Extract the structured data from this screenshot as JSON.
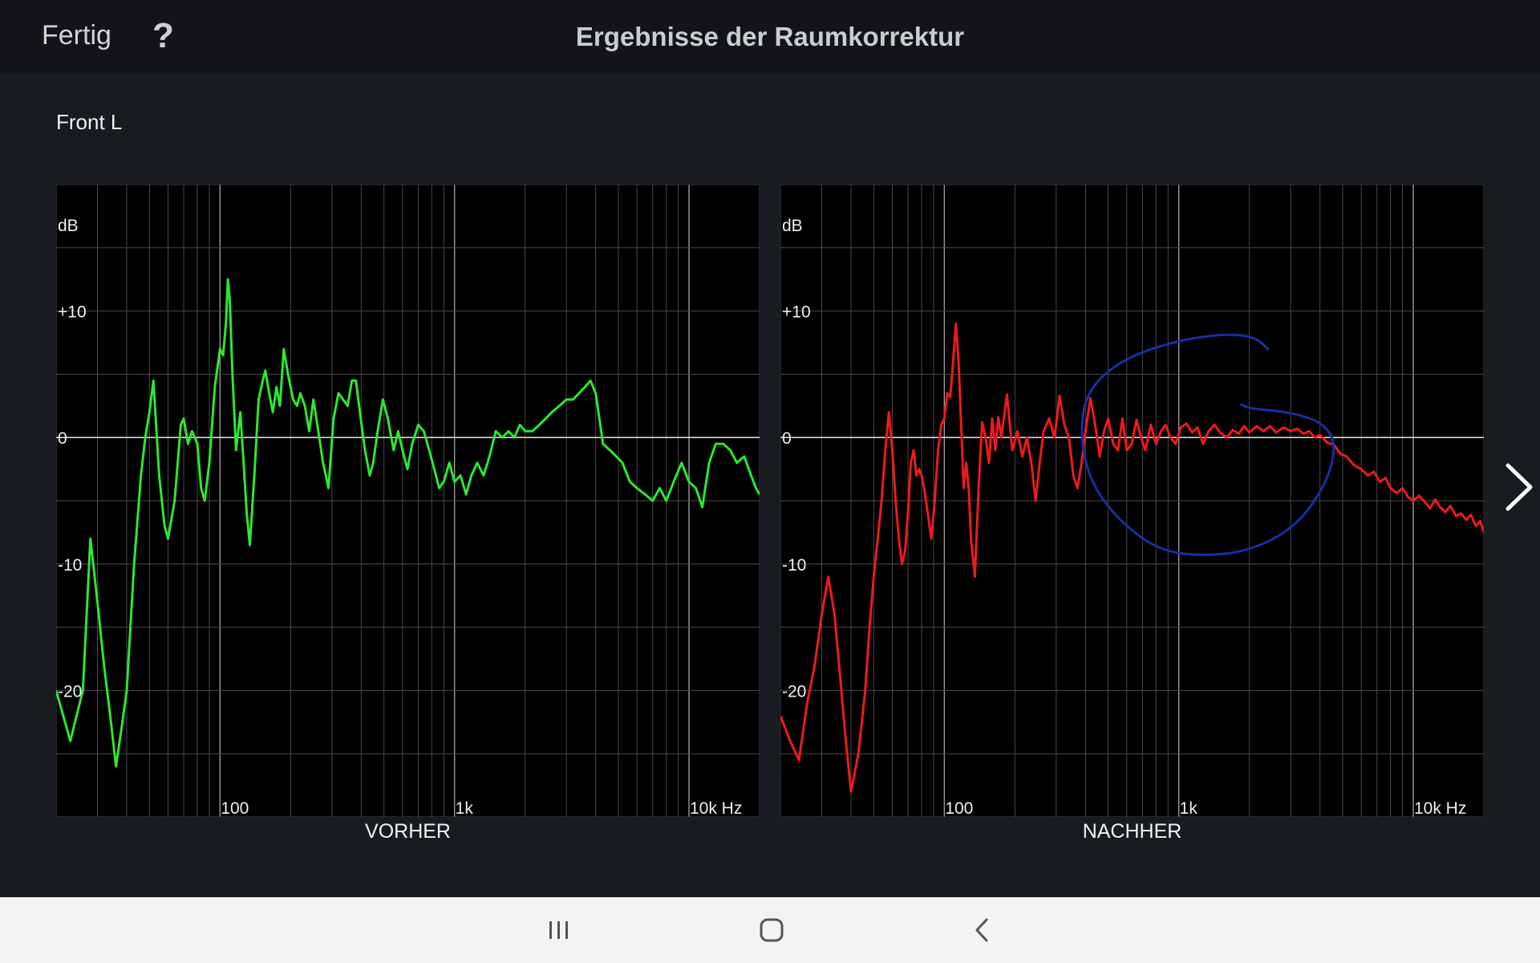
{
  "header": {
    "done_label": "Fertig",
    "help_label": "?",
    "title": "Ergebnisse der Raumkorrektur"
  },
  "channel_label": "Front L",
  "icons": {
    "help": "question-mark-icon",
    "next": "chevron-right-icon",
    "nav_recent": "recent-apps-icon",
    "nav_home": "home-icon",
    "nav_back": "back-icon"
  },
  "colors": {
    "before_curve": "#2fe62f",
    "after_curve": "#ee1a1a",
    "annotation": "#1a2fa0"
  },
  "chart_data": [
    {
      "type": "line",
      "caption": "VORHER",
      "ylabel": "dB",
      "y_ticks": [
        "+10",
        "0",
        "-10",
        "-20"
      ],
      "x_ticks": [
        "100",
        "1k",
        "10k Hz"
      ],
      "xlim": [
        20,
        20000
      ],
      "ylim": [
        -30,
        20
      ],
      "x_scale": "log",
      "grid": true,
      "series": [
        {
          "color": "#2fe62f",
          "points": [
            [
              20,
              -20
            ],
            [
              23,
              -24
            ],
            [
              26,
              -20
            ],
            [
              28,
              -8
            ],
            [
              30,
              -13
            ],
            [
              32,
              -18
            ],
            [
              34,
              -22
            ],
            [
              36,
              -26
            ],
            [
              38,
              -23
            ],
            [
              40,
              -20
            ],
            [
              43,
              -10
            ],
            [
              46,
              -3
            ],
            [
              48,
              0
            ],
            [
              50,
              2
            ],
            [
              52,
              4.5
            ],
            [
              55,
              -3
            ],
            [
              58,
              -7
            ],
            [
              60,
              -8
            ],
            [
              64,
              -5
            ],
            [
              68,
              1
            ],
            [
              70,
              1.5
            ],
            [
              73,
              -0.5
            ],
            [
              76,
              0.5
            ],
            [
              80,
              -0.5
            ],
            [
              83,
              -4
            ],
            [
              86,
              -5
            ],
            [
              90,
              -2
            ],
            [
              95,
              4
            ],
            [
              100,
              7
            ],
            [
              103,
              6.5
            ],
            [
              106,
              9
            ],
            [
              108,
              12.5
            ],
            [
              110,
              11
            ],
            [
              113,
              5
            ],
            [
              117,
              -1
            ],
            [
              122,
              2
            ],
            [
              126,
              -2
            ],
            [
              130,
              -6
            ],
            [
              134,
              -8.5
            ],
            [
              140,
              -3
            ],
            [
              146,
              3
            ],
            [
              152,
              4.5
            ],
            [
              156,
              5.3
            ],
            [
              162,
              3.5
            ],
            [
              168,
              2
            ],
            [
              174,
              4
            ],
            [
              180,
              2.5
            ],
            [
              187,
              7
            ],
            [
              195,
              5
            ],
            [
              205,
              3
            ],
            [
              213,
              2.5
            ],
            [
              220,
              3.5
            ],
            [
              230,
              2.5
            ],
            [
              240,
              0.5
            ],
            [
              250,
              3
            ],
            [
              260,
              1
            ],
            [
              275,
              -2
            ],
            [
              290,
              -4
            ],
            [
              305,
              1.5
            ],
            [
              320,
              3.5
            ],
            [
              335,
              3
            ],
            [
              350,
              2.5
            ],
            [
              365,
              4.5
            ],
            [
              380,
              4.5
            ],
            [
              395,
              2
            ],
            [
              415,
              -1
            ],
            [
              435,
              -3
            ],
            [
              450,
              -2
            ],
            [
              470,
              0.5
            ],
            [
              495,
              3
            ],
            [
              520,
              1.5
            ],
            [
              550,
              -1
            ],
            [
              575,
              0.5
            ],
            [
              600,
              -1
            ],
            [
              630,
              -2.5
            ],
            [
              660,
              -0.5
            ],
            [
              700,
              1
            ],
            [
              740,
              0.5
            ],
            [
              780,
              -1
            ],
            [
              820,
              -2.5
            ],
            [
              860,
              -4
            ],
            [
              900,
              -3.5
            ],
            [
              950,
              -2
            ],
            [
              1000,
              -3.5
            ],
            [
              1060,
              -3
            ],
            [
              1120,
              -4.5
            ],
            [
              1180,
              -3
            ],
            [
              1250,
              -2
            ],
            [
              1330,
              -3
            ],
            [
              1410,
              -1.5
            ],
            [
              1500,
              0.5
            ],
            [
              1600,
              0
            ],
            [
              1700,
              0.5
            ],
            [
              1800,
              0
            ],
            [
              1900,
              1
            ],
            [
              2000,
              0.5
            ],
            [
              2150,
              0.5
            ],
            [
              2300,
              1
            ],
            [
              2450,
              1.5
            ],
            [
              2600,
              2
            ],
            [
              2800,
              2.5
            ],
            [
              3000,
              3
            ],
            [
              3200,
              3
            ],
            [
              3400,
              3.5
            ],
            [
              3600,
              4
            ],
            [
              3800,
              4.5
            ],
            [
              4000,
              3.5
            ],
            [
              4300,
              -0.5
            ],
            [
              4600,
              -1
            ],
            [
              4900,
              -1.5
            ],
            [
              5200,
              -2
            ],
            [
              5600,
              -3.5
            ],
            [
              6000,
              -4
            ],
            [
              6500,
              -4.5
            ],
            [
              7000,
              -5
            ],
            [
              7500,
              -4
            ],
            [
              8000,
              -5
            ],
            [
              8600,
              -3.5
            ],
            [
              9300,
              -2
            ],
            [
              10000,
              -3.5
            ],
            [
              10700,
              -4
            ],
            [
              11400,
              -5.5
            ],
            [
              12200,
              -2
            ],
            [
              13000,
              -0.5
            ],
            [
              14000,
              -0.5
            ],
            [
              15000,
              -1
            ],
            [
              16000,
              -2
            ],
            [
              17200,
              -1.5
            ],
            [
              18400,
              -3
            ],
            [
              19300,
              -4
            ],
            [
              20000,
              -4.5
            ]
          ]
        }
      ]
    },
    {
      "type": "line",
      "caption": "NACHHER",
      "ylabel": "dB",
      "y_ticks": [
        "+10",
        "0",
        "-10",
        "-20"
      ],
      "x_ticks": [
        "100",
        "1k",
        "10k Hz"
      ],
      "xlim": [
        20,
        20000
      ],
      "ylim": [
        -30,
        20
      ],
      "x_scale": "log",
      "grid": true,
      "series": [
        {
          "color": "#ee1a1a",
          "points": [
            [
              20,
              -22
            ],
            [
              22,
              -24
            ],
            [
              24,
              -25.5
            ],
            [
              26,
              -21
            ],
            [
              28,
              -18
            ],
            [
              30,
              -14
            ],
            [
              32,
              -11
            ],
            [
              34,
              -14
            ],
            [
              36,
              -19
            ],
            [
              38,
              -24
            ],
            [
              40,
              -28
            ],
            [
              43,
              -25
            ],
            [
              46,
              -20
            ],
            [
              48,
              -15
            ],
            [
              50,
              -11
            ],
            [
              52,
              -8
            ],
            [
              54,
              -5
            ],
            [
              56,
              -1
            ],
            [
              58,
              2
            ],
            [
              60,
              -1
            ],
            [
              62,
              -5
            ],
            [
              64,
              -8
            ],
            [
              66,
              -10
            ],
            [
              68,
              -9
            ],
            [
              70,
              -6
            ],
            [
              72,
              -2
            ],
            [
              74,
              -1
            ],
            [
              76,
              -3
            ],
            [
              78,
              -2.5
            ],
            [
              80,
              -3
            ],
            [
              82,
              -4
            ],
            [
              85,
              -6
            ],
            [
              88,
              -8
            ],
            [
              91,
              -5
            ],
            [
              94,
              -1
            ],
            [
              97,
              1
            ],
            [
              100,
              1.5
            ],
            [
              103,
              3.5
            ],
            [
              106,
              3.2
            ],
            [
              109,
              6
            ],
            [
              112,
              9
            ],
            [
              115,
              6
            ],
            [
              118,
              1
            ],
            [
              121,
              -4
            ],
            [
              124,
              -2
            ],
            [
              127,
              -4
            ],
            [
              130,
              -8
            ],
            [
              135,
              -11
            ],
            [
              140,
              -4
            ],
            [
              145,
              1.2
            ],
            [
              150,
              0
            ],
            [
              155,
              -2
            ],
            [
              160,
              1.5
            ],
            [
              165,
              -1
            ],
            [
              170,
              1.6
            ],
            [
              175,
              0
            ],
            [
              185,
              3.4
            ],
            [
              195,
              -1
            ],
            [
              205,
              0.5
            ],
            [
              215,
              -1.5
            ],
            [
              225,
              0
            ],
            [
              235,
              -2
            ],
            [
              245,
              -5
            ],
            [
              255,
              -2
            ],
            [
              265,
              0.5
            ],
            [
              280,
              1.5
            ],
            [
              295,
              0
            ],
            [
              310,
              3.3
            ],
            [
              325,
              1
            ],
            [
              340,
              0
            ],
            [
              355,
              -3
            ],
            [
              370,
              -4
            ],
            [
              385,
              -2
            ],
            [
              400,
              0.5
            ],
            [
              420,
              3.1
            ],
            [
              440,
              1
            ],
            [
              460,
              -1.5
            ],
            [
              480,
              0.5
            ],
            [
              500,
              1.5
            ],
            [
              525,
              -0.5
            ],
            [
              550,
              -1
            ],
            [
              575,
              1.5
            ],
            [
              600,
              -1
            ],
            [
              630,
              -0.5
            ],
            [
              660,
              1.4
            ],
            [
              690,
              0
            ],
            [
              720,
              -1
            ],
            [
              760,
              1
            ],
            [
              800,
              -0.5
            ],
            [
              840,
              0.5
            ],
            [
              880,
              1
            ],
            [
              920,
              0
            ],
            [
              970,
              -0.5
            ],
            [
              1020,
              0.8
            ],
            [
              1080,
              1.1
            ],
            [
              1140,
              0.4
            ],
            [
              1200,
              0.8
            ],
            [
              1270,
              -0.5
            ],
            [
              1340,
              0.5
            ],
            [
              1420,
              1
            ],
            [
              1500,
              0.4
            ],
            [
              1600,
              0
            ],
            [
              1700,
              0.6
            ],
            [
              1800,
              0.3
            ],
            [
              1900,
              0.9
            ],
            [
              2000,
              0.4
            ],
            [
              2150,
              0.9
            ],
            [
              2300,
              0.5
            ],
            [
              2450,
              0.9
            ],
            [
              2600,
              0.4
            ],
            [
              2800,
              0.8
            ],
            [
              3000,
              0.5
            ],
            [
              3200,
              0.7
            ],
            [
              3400,
              0.3
            ],
            [
              3600,
              0.5
            ],
            [
              3800,
              0
            ],
            [
              4000,
              0.2
            ],
            [
              4300,
              -0.4
            ],
            [
              4600,
              -0.6
            ],
            [
              4900,
              -1.3
            ],
            [
              5200,
              -1.5
            ],
            [
              5600,
              -2.2
            ],
            [
              6000,
              -2.5
            ],
            [
              6400,
              -3
            ],
            [
              6800,
              -2.7
            ],
            [
              7200,
              -3.5
            ],
            [
              7600,
              -3.2
            ],
            [
              8000,
              -4
            ],
            [
              8500,
              -4.4
            ],
            [
              9000,
              -4
            ],
            [
              9500,
              -4.7
            ],
            [
              10000,
              -5
            ],
            [
              10600,
              -4.6
            ],
            [
              11200,
              -5.1
            ],
            [
              11800,
              -5.6
            ],
            [
              12400,
              -4.9
            ],
            [
              13000,
              -5.5
            ],
            [
              13700,
              -5.9
            ],
            [
              14400,
              -5.4
            ],
            [
              15200,
              -6.2
            ],
            [
              16000,
              -6
            ],
            [
              16800,
              -6.5
            ],
            [
              17600,
              -6.1
            ],
            [
              18500,
              -7
            ],
            [
              19300,
              -6.6
            ],
            [
              20000,
              -7.5
            ]
          ]
        }
      ]
    }
  ]
}
